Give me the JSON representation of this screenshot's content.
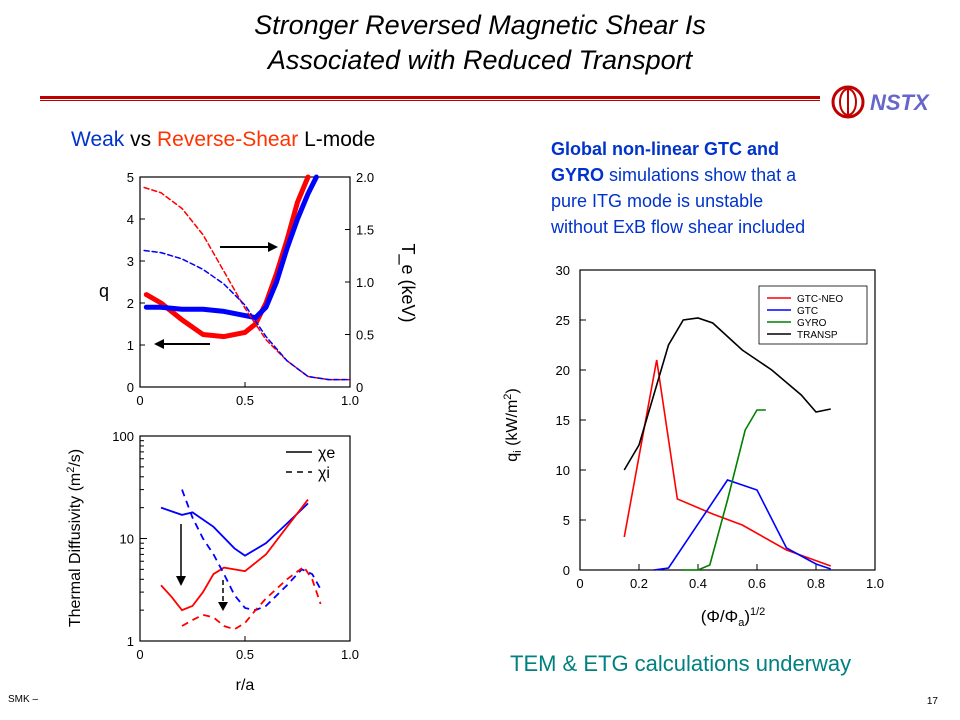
{
  "slide": {
    "title_line1": "Stronger Reversed Magnetic Shear Is",
    "title_line2": "Associated with Reduced Transport",
    "logo_text": "NSTX",
    "subhead": {
      "weak": "Weak",
      "vs": "vs",
      "reverse": "Reverse-Shear",
      "lmode": "L-mode"
    },
    "sim_text": {
      "bold1": "Global non-linear GTC and",
      "bold2": "GYRO",
      "line2_rest": "simulations show that a",
      "line3": "pure ITG mode is unstable",
      "line4": "without ExB flow shear included"
    },
    "footer_left": "SMK –",
    "page_number": "17",
    "tem_text": "TEM & ETG calculations underway",
    "colors": {
      "accent_red": "#c00000",
      "blue_text": "#0033cc",
      "orange_text": "#ff3300",
      "teal": "#008080"
    }
  },
  "chart_data": [
    {
      "type": "line",
      "name_hint": "q and Te profiles",
      "xlabel": "",
      "ylabel_left": "q",
      "ylabel_right": "T_e (keV)",
      "xlim": [
        0,
        1.0
      ],
      "ylim_left": [
        0,
        5
      ],
      "ylim_right": [
        0,
        2.0
      ],
      "x_ticks": [
        "0",
        "0.5",
        "1.0"
      ],
      "y_left_ticks": [
        "0",
        "1",
        "2",
        "3",
        "4",
        "5"
      ],
      "y_right_ticks": [
        "0",
        "0.5",
        "1.0",
        "1.5",
        "2.0"
      ],
      "series": [
        {
          "color": "#ff0000",
          "style": "thick",
          "axis": "left",
          "x": [
            0.03,
            0.1,
            0.2,
            0.3,
            0.4,
            0.5,
            0.55,
            0.6,
            0.65,
            0.7,
            0.75,
            0.8
          ],
          "y": [
            2.2,
            2.0,
            1.6,
            1.25,
            1.2,
            1.3,
            1.5,
            2.0,
            2.7,
            3.5,
            4.4,
            5.0
          ]
        },
        {
          "color": "#0000ff",
          "style": "thick",
          "axis": "left",
          "x": [
            0.03,
            0.1,
            0.2,
            0.3,
            0.4,
            0.5,
            0.55,
            0.6,
            0.65,
            0.7,
            0.75,
            0.8,
            0.84
          ],
          "y": [
            1.9,
            1.9,
            1.85,
            1.85,
            1.8,
            1.7,
            1.65,
            1.9,
            2.5,
            3.3,
            4.0,
            4.6,
            5.0
          ]
        },
        {
          "color": "#ff0000",
          "style": "dashed",
          "axis": "right",
          "x": [
            0.02,
            0.1,
            0.2,
            0.3,
            0.4,
            0.5,
            0.6,
            0.7,
            0.8,
            0.9,
            1.0
          ],
          "y": [
            1.9,
            1.85,
            1.7,
            1.45,
            1.1,
            0.75,
            0.45,
            0.25,
            0.1,
            0.07,
            0.07
          ]
        },
        {
          "color": "#0000ff",
          "style": "dashed",
          "axis": "right",
          "x": [
            0.02,
            0.1,
            0.2,
            0.3,
            0.4,
            0.5,
            0.6,
            0.7,
            0.8,
            0.9,
            1.0
          ],
          "y": [
            1.3,
            1.28,
            1.22,
            1.12,
            0.98,
            0.78,
            0.48,
            0.25,
            0.1,
            0.07,
            0.07
          ]
        }
      ]
    },
    {
      "type": "line",
      "name_hint": "Thermal diffusivity",
      "xlabel": "r/a",
      "ylabel": "Thermal Diffusivity (m",
      "ylabel_sup": "2",
      "ylabel_end": "/s)",
      "xlim": [
        0,
        1.0
      ],
      "ylim": [
        1,
        100
      ],
      "log_y": true,
      "x_ticks": [
        "0",
        "0.5",
        "1.0"
      ],
      "y_ticks": [
        "1",
        "10",
        "100"
      ],
      "legend": [
        {
          "label": "χe",
          "style": "solid"
        },
        {
          "label": "χi",
          "style": "dashed"
        }
      ],
      "series": [
        {
          "color": "#0000ff",
          "style": "solid",
          "x": [
            0.1,
            0.2,
            0.25,
            0.35,
            0.45,
            0.5,
            0.6,
            0.7,
            0.8
          ],
          "y": [
            20,
            17,
            18,
            13,
            8,
            6.8,
            9,
            14,
            22
          ]
        },
        {
          "color": "#ff0000",
          "style": "solid",
          "x": [
            0.1,
            0.15,
            0.2,
            0.25,
            0.3,
            0.35,
            0.4,
            0.45,
            0.5,
            0.6,
            0.7,
            0.8
          ],
          "y": [
            3.5,
            2.7,
            2.0,
            2.2,
            3.0,
            4.5,
            5.2,
            5.0,
            4.8,
            7,
            13,
            24
          ]
        },
        {
          "color": "#0000ff",
          "style": "dashed",
          "x": [
            0.2,
            0.25,
            0.3,
            0.35,
            0.4,
            0.45,
            0.5,
            0.55,
            0.6,
            0.7,
            0.77,
            0.82,
            0.86
          ],
          "y": [
            30,
            16,
            10,
            7,
            4.5,
            2.8,
            2.1,
            2.0,
            2.2,
            3.5,
            5.0,
            4.5,
            3.2
          ]
        },
        {
          "color": "#ff0000",
          "style": "dashed",
          "x": [
            0.2,
            0.25,
            0.3,
            0.35,
            0.4,
            0.45,
            0.5,
            0.55,
            0.6,
            0.7,
            0.78,
            0.82,
            0.86
          ],
          "y": [
            1.4,
            1.6,
            1.8,
            1.7,
            1.4,
            1.3,
            1.5,
            2.0,
            2.6,
            4.0,
            5.3,
            4.0,
            2.3
          ]
        }
      ]
    },
    {
      "type": "line",
      "name_hint": "Ion heat flux",
      "xlabel": "(Φ/Φ",
      "xlabel_sub": "a",
      "xlabel_end": ")",
      "xlabel_sup": "1/2",
      "ylabel": "q",
      "ylabel_sub": "i",
      "ylabel_end": " (kW/m",
      "ylabel_sup": "2",
      "ylabel_close": ")",
      "xlim": [
        0,
        1.0
      ],
      "ylim": [
        0,
        30
      ],
      "x_ticks": [
        "0",
        "0.2",
        "0.4",
        "0.6",
        "0.8",
        "1.0"
      ],
      "y_ticks": [
        "0",
        "5",
        "10",
        "15",
        "20",
        "25",
        "30"
      ],
      "legend": [
        {
          "label": "GTC-NEO",
          "color": "#ff0000"
        },
        {
          "label": "GTC",
          "color": "#0000ff"
        },
        {
          "label": "GYRO",
          "color": "#008000"
        },
        {
          "label": "TRANSP",
          "color": "#000000"
        }
      ],
      "series": [
        {
          "color": "#ff0000",
          "x": [
            0.15,
            0.26,
            0.33,
            0.45,
            0.55,
            0.7,
            0.85
          ],
          "y": [
            3.3,
            21,
            7.1,
            5.6,
            4.5,
            2.0,
            0.4
          ]
        },
        {
          "color": "#0000ff",
          "x": [
            0.25,
            0.3,
            0.5,
            0.6,
            0.7,
            0.8,
            0.85
          ],
          "y": [
            0,
            0.2,
            9.0,
            8.0,
            2.2,
            0.6,
            0.1
          ]
        },
        {
          "color": "#008000",
          "x": [
            0.35,
            0.4,
            0.44,
            0.5,
            0.56,
            0.6,
            0.63
          ],
          "y": [
            0,
            0,
            0.5,
            7.0,
            14,
            16,
            16
          ]
        },
        {
          "color": "#000000",
          "x": [
            0.15,
            0.2,
            0.3,
            0.35,
            0.4,
            0.45,
            0.55,
            0.65,
            0.75,
            0.8,
            0.85
          ],
          "y": [
            10,
            12.5,
            22.5,
            25,
            25.2,
            24.7,
            22,
            20,
            17.5,
            15.8,
            16.1
          ]
        }
      ]
    }
  ]
}
